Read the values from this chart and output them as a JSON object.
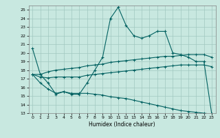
{
  "xlabel": "Humidex (Indice chaleur)",
  "bg_color": "#c8e8e0",
  "grid_color": "#a0c8bf",
  "line_color": "#006060",
  "xlim": [
    -0.5,
    23.5
  ],
  "ylim": [
    13,
    25.5
  ],
  "yticks": [
    13,
    14,
    15,
    16,
    17,
    18,
    19,
    20,
    21,
    22,
    23,
    24,
    25
  ],
  "xticks": [
    0,
    1,
    2,
    3,
    4,
    5,
    6,
    7,
    8,
    9,
    10,
    11,
    12,
    13,
    14,
    15,
    16,
    17,
    18,
    19,
    20,
    21,
    22,
    23
  ],
  "series1_x": [
    0,
    1,
    2,
    3,
    4,
    5,
    6,
    7,
    8,
    9,
    10,
    11,
    12,
    13,
    14,
    15,
    16,
    17,
    18,
    19,
    20,
    21,
    22,
    23
  ],
  "series1_y": [
    20.5,
    17.5,
    16.5,
    15.2,
    15.5,
    15.2,
    15.2,
    16.5,
    18.0,
    19.5,
    24.0,
    25.3,
    23.2,
    22.0,
    21.7,
    22.0,
    22.5,
    22.5,
    20.0,
    19.8,
    19.5,
    19.0,
    19.0,
    12.9
  ],
  "series2_x": [
    0,
    1,
    2,
    3,
    4,
    5,
    6,
    7,
    8,
    9,
    10,
    11,
    12,
    13,
    14,
    15,
    16,
    17,
    18,
    19,
    20,
    21,
    22,
    23
  ],
  "series2_y": [
    17.5,
    17.5,
    17.8,
    18.0,
    18.1,
    18.2,
    18.3,
    18.5,
    18.6,
    18.7,
    18.9,
    19.0,
    19.1,
    19.2,
    19.3,
    19.4,
    19.5,
    19.6,
    19.6,
    19.7,
    19.8,
    19.8,
    19.8,
    19.5
  ],
  "series3_x": [
    0,
    1,
    2,
    3,
    4,
    5,
    6,
    7,
    8,
    9,
    10,
    11,
    12,
    13,
    14,
    15,
    16,
    17,
    18,
    19,
    20,
    21,
    22,
    23
  ],
  "series3_y": [
    17.5,
    17.2,
    17.1,
    17.2,
    17.2,
    17.2,
    17.2,
    17.4,
    17.5,
    17.6,
    17.7,
    17.8,
    17.9,
    18.0,
    18.1,
    18.2,
    18.3,
    18.4,
    18.5,
    18.6,
    18.6,
    18.6,
    18.6,
    18.4
  ],
  "series4_x": [
    0,
    1,
    2,
    3,
    4,
    5,
    6,
    7,
    8,
    9,
    10,
    11,
    12,
    13,
    14,
    15,
    16,
    17,
    18,
    19,
    20,
    21,
    22,
    23
  ],
  "series4_y": [
    17.5,
    16.5,
    15.8,
    15.3,
    15.5,
    15.3,
    15.3,
    15.3,
    15.2,
    15.1,
    14.9,
    14.8,
    14.7,
    14.5,
    14.3,
    14.1,
    13.9,
    13.7,
    13.5,
    13.3,
    13.2,
    13.1,
    13.0,
    12.9
  ]
}
